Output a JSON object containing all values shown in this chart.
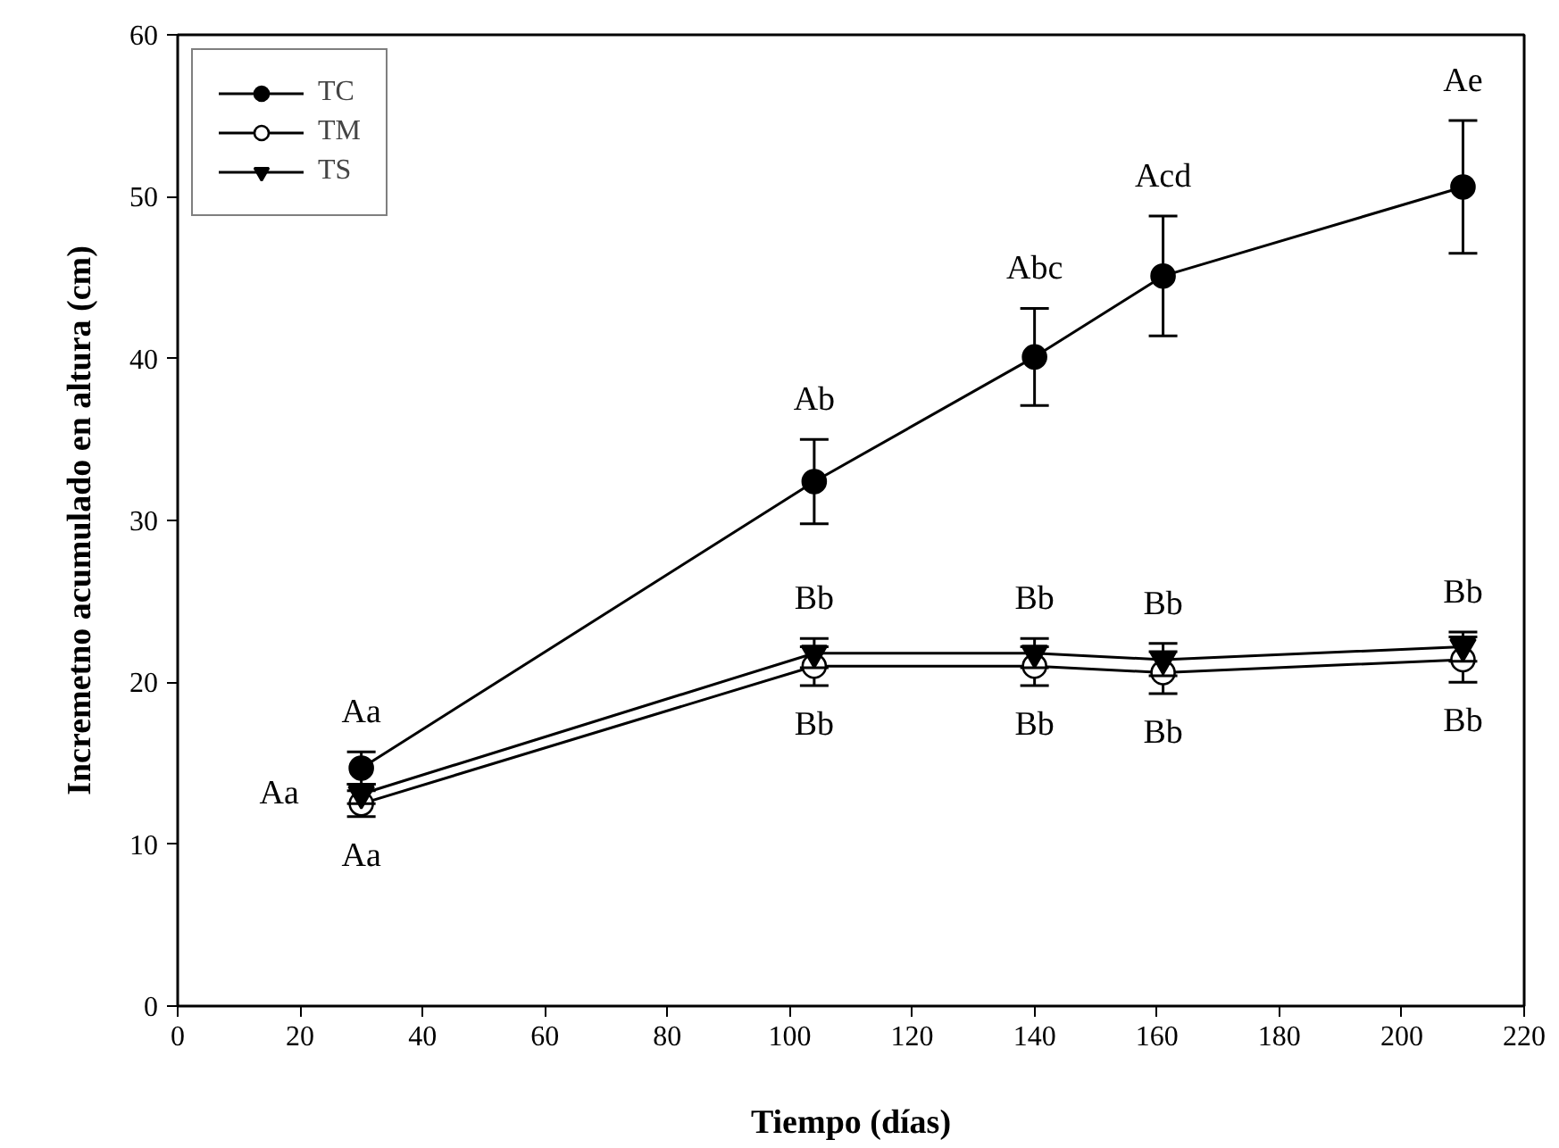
{
  "chart_data": {
    "type": "line",
    "xlabel": "Tiempo (días)",
    "ylabel": "Incremetno acumulado en altura (cm)",
    "x": [
      30,
      104,
      140,
      161,
      210
    ],
    "series": [
      {
        "name": "TC",
        "color": "#000000",
        "marker": "circle",
        "values": [
          14.7,
          32.4,
          40.1,
          45.1,
          50.6
        ],
        "errors": [
          1.0,
          2.6,
          3.0,
          3.7,
          4.1
        ]
      },
      {
        "name": "TM",
        "color": "#000000",
        "marker": "circle_open",
        "values": [
          12.5,
          21.0,
          21.0,
          20.6,
          21.4
        ],
        "errors": [
          0.8,
          1.2,
          1.2,
          1.3,
          1.4
        ]
      },
      {
        "name": "TS",
        "color": "#000000",
        "marker": "triangle_down",
        "values": [
          13.1,
          21.8,
          21.8,
          21.4,
          22.2
        ],
        "errors": [
          0.6,
          0.9,
          0.9,
          1.0,
          0.9
        ]
      }
    ],
    "xlim": [
      0,
      220
    ],
    "xticks": [
      0,
      20,
      40,
      60,
      80,
      100,
      120,
      140,
      160,
      180,
      200,
      220
    ],
    "ylim": [
      0,
      60
    ],
    "yticks": [
      0,
      10,
      20,
      30,
      40,
      50,
      60
    ],
    "grid": false,
    "legend": "top left",
    "line_style": "solid",
    "annotations": [
      {
        "text": "Aa",
        "x": 30,
        "y": 14.7
      },
      {
        "text": "Aa",
        "x": 30,
        "y": 13.1
      },
      {
        "text": "Aa",
        "x": 30,
        "y": 12.5
      },
      {
        "text": "Ab",
        "x": 104,
        "y": 32.4
      },
      {
        "text": "Abc",
        "x": 140,
        "y": 40.1
      },
      {
        "text": "Acd",
        "x": 161,
        "y": 45.1
      },
      {
        "text": "Ae",
        "x": 210,
        "y": 50.6
      },
      {
        "text": "Bb",
        "x": 104,
        "y": 21.8
      },
      {
        "text": "Bb",
        "x": 140,
        "y": 21.8
      },
      {
        "text": "Bb",
        "x": 161,
        "y": 21.4
      },
      {
        "text": "Bb",
        "x": 210,
        "y": 22.2
      },
      {
        "text": "Bb",
        "x": 104,
        "y": 21.0
      },
      {
        "text": "Bb",
        "x": 140,
        "y": 21.0
      },
      {
        "text": "Bb",
        "x": 161,
        "y": 20.6
      },
      {
        "text": "Bb",
        "x": 210,
        "y": 21.4
      }
    ]
  }
}
